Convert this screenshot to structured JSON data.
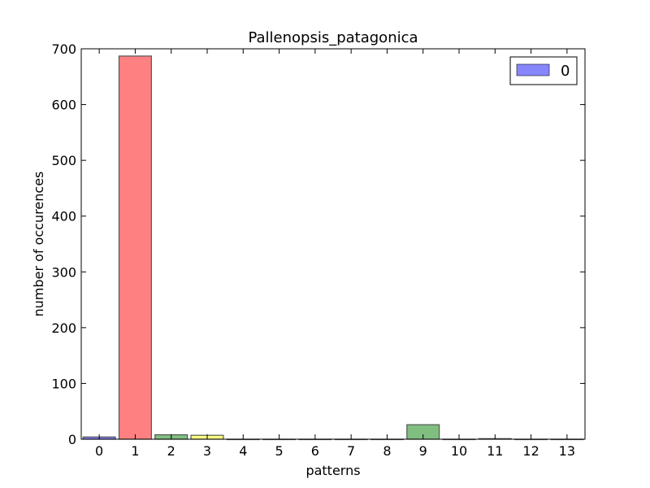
{
  "chart_data": {
    "type": "bar",
    "title": "Pallenopsis_patagonica",
    "xlabel": "patterns",
    "ylabel": "number of occurences",
    "categories": [
      "0",
      "1",
      "2",
      "3",
      "4",
      "5",
      "6",
      "7",
      "8",
      "9",
      "10",
      "11",
      "12",
      "13"
    ],
    "values": [
      4,
      687,
      8,
      7,
      0,
      0,
      0,
      0,
      0,
      26,
      0,
      1,
      0,
      0
    ],
    "bar_colors": [
      "#8080ff",
      "#ff8080",
      "#80bf80",
      "#ffff80",
      "#8080ff",
      "#ff8080",
      "#80bf80",
      "#ffff80",
      "#8080ff",
      "#80bf80",
      "#ffff80",
      "#8080ff",
      "#ff8080",
      "#80bf80"
    ],
    "ylim": [
      0,
      700
    ],
    "yticks": [
      0,
      100,
      200,
      300,
      400,
      500,
      600,
      700
    ],
    "legend": {
      "entries": [
        {
          "label": "0",
          "color": "#8080ff"
        }
      ],
      "position": "top-right"
    },
    "grid": false
  }
}
